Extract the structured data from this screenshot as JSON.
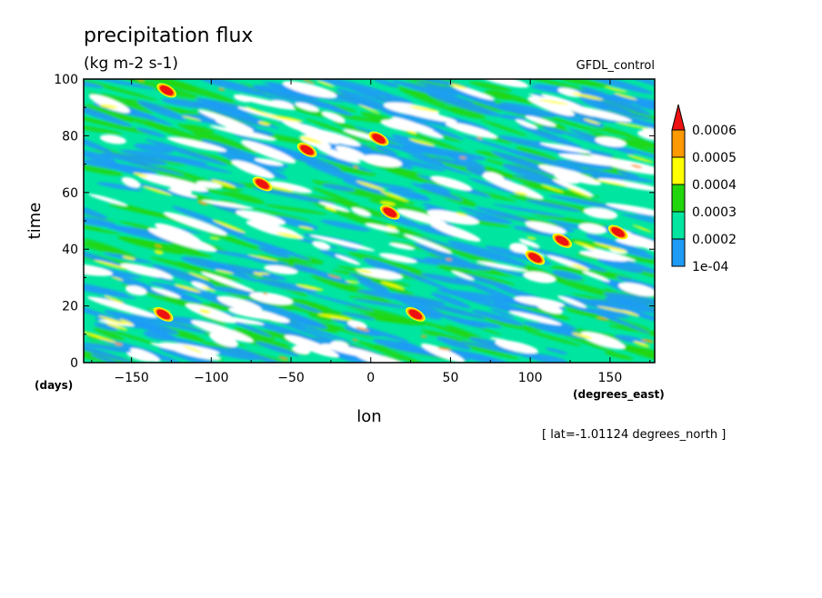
{
  "chart_data": {
    "type": "heatmap",
    "title": "precipitation flux",
    "units": "(kg m-2 s-1)",
    "dataset_label": "GFDL_control",
    "xlabel": "lon",
    "xunits": "(degrees_east)",
    "ylabel": "time",
    "yunits": "(days)",
    "xlim": [
      -180,
      178
    ],
    "ylim": [
      0,
      100
    ],
    "xticks": [
      -150,
      -100,
      -50,
      0,
      50,
      100,
      150
    ],
    "yticks": [
      0,
      20,
      40,
      60,
      80,
      100
    ],
    "footnote": "[ lat=-1.01124 degrees_north ]",
    "colorbar": {
      "levels": [
        "1e-04",
        "0.0002",
        "0.0003",
        "0.0004",
        "0.0005",
        "0.0006"
      ],
      "colors": [
        "#1e9bf5",
        "#00e6a0",
        "#22d60c",
        "#ffff00",
        "#ff9900",
        "#ee1111"
      ],
      "extend": "max"
    },
    "notable_maxima": [
      {
        "lon": -130,
        "time": 17,
        "level": "0.0006"
      },
      {
        "lon": -128,
        "time": 96,
        "level": "0.0006"
      },
      {
        "lon": -68,
        "time": 63,
        "level": "0.0006"
      },
      {
        "lon": -40,
        "time": 75,
        "level": "0.0006"
      },
      {
        "lon": 5,
        "time": 79,
        "level": "0.0006"
      },
      {
        "lon": 12,
        "time": 53,
        "level": "0.0006"
      },
      {
        "lon": 28,
        "time": 17,
        "level": "0.0006"
      },
      {
        "lon": 103,
        "time": 37,
        "level": "0.0006"
      },
      {
        "lon": 155,
        "time": 46,
        "level": "0.0006"
      },
      {
        "lon": 120,
        "time": 43,
        "level": "0.0006"
      }
    ]
  }
}
